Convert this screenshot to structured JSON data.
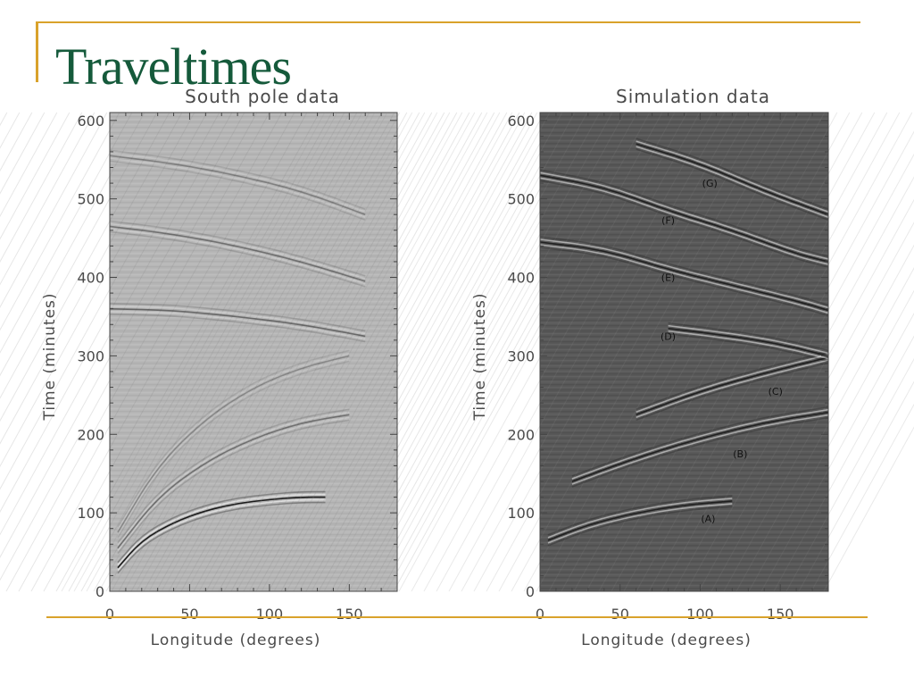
{
  "slide": {
    "title": "Traveltimes",
    "accent_color": "#d9a22b",
    "title_color": "#155a3b"
  },
  "chart_data": [
    {
      "type": "heatmap",
      "title": "South pole data",
      "xlabel": "Longitude (degrees)",
      "ylabel": "Time (minutes)",
      "xlim": [
        0,
        180
      ],
      "ylim": [
        0,
        610
      ],
      "xticks": [
        0,
        50,
        100,
        150
      ],
      "yticks": [
        0,
        100,
        200,
        300,
        400,
        500,
        600
      ],
      "background": "light gray",
      "arcs": [
        {
          "x": [
            5,
            20,
            40,
            60,
            80,
            100,
            120,
            135
          ],
          "y": [
            30,
            65,
            88,
            103,
            112,
            117,
            120,
            120
          ],
          "strength": 1.0
        },
        {
          "x": [
            5,
            30,
            60,
            90,
            120,
            150
          ],
          "y": [
            55,
            120,
            165,
            195,
            215,
            225
          ],
          "strength": 0.45
        },
        {
          "x": [
            5,
            30,
            60,
            90,
            120,
            150
          ],
          "y": [
            75,
            160,
            220,
            260,
            285,
            300
          ],
          "strength": 0.3
        },
        {
          "x": [
            0,
            40,
            80,
            120,
            160
          ],
          "y": [
            360,
            358,
            350,
            340,
            325
          ],
          "strength": 0.5
        },
        {
          "x": [
            0,
            40,
            80,
            120,
            160
          ],
          "y": [
            465,
            455,
            440,
            420,
            395
          ],
          "strength": 0.45
        },
        {
          "x": [
            0,
            40,
            80,
            120,
            160
          ],
          "y": [
            555,
            545,
            530,
            510,
            480
          ],
          "strength": 0.35
        }
      ]
    },
    {
      "type": "heatmap",
      "title": "Simulation data",
      "xlabel": "Longitude (degrees)",
      "ylabel": "Time (minutes)",
      "xlim": [
        0,
        180
      ],
      "ylim": [
        0,
        610
      ],
      "xticks": [
        0,
        50,
        100,
        150
      ],
      "yticks": [
        0,
        100,
        200,
        300,
        400,
        500,
        600
      ],
      "background": "dark gray",
      "arcs": [
        {
          "label": "(A)",
          "x": [
            5,
            30,
            60,
            90,
            120
          ],
          "y": [
            65,
            85,
            100,
            110,
            115
          ],
          "label_at": [
            105,
            93
          ]
        },
        {
          "label": "(B)",
          "x": [
            20,
            60,
            100,
            140,
            180
          ],
          "y": [
            140,
            170,
            195,
            215,
            228
          ],
          "label_at": [
            125,
            175
          ]
        },
        {
          "label": "(C)",
          "x": [
            60,
            100,
            140,
            180
          ],
          "y": [
            225,
            255,
            278,
            298
          ],
          "label_at": [
            147,
            255
          ]
        },
        {
          "label": "(D)",
          "x": [
            80,
            120,
            150,
            180
          ],
          "y": [
            335,
            325,
            315,
            300
          ],
          "label_at": [
            80,
            325
          ]
        },
        {
          "label": "(E)",
          "x": [
            0,
            40,
            80,
            120,
            160,
            180
          ],
          "y": [
            445,
            435,
            410,
            390,
            370,
            358
          ],
          "label_at": [
            80,
            400
          ]
        },
        {
          "label": "(F)",
          "x": [
            0,
            40,
            80,
            120,
            160,
            180
          ],
          "y": [
            530,
            515,
            485,
            460,
            430,
            420
          ],
          "label_at": [
            80,
            473
          ]
        },
        {
          "label": "(G)",
          "x": [
            60,
            100,
            140,
            180
          ],
          "y": [
            570,
            545,
            510,
            480
          ],
          "label_at": [
            106,
            520
          ]
        }
      ]
    }
  ]
}
